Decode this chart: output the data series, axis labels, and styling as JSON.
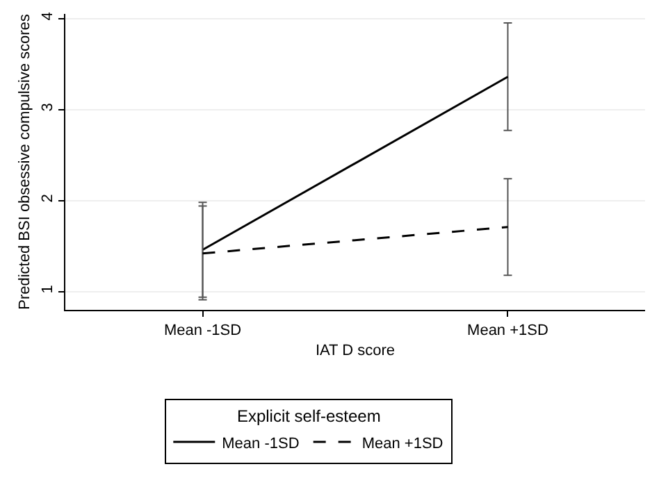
{
  "chart_data": {
    "type": "line",
    "xlabel": "IAT D score",
    "ylabel": "Predicted BSI obsessive compulsive scores",
    "legend_title": "Explicit self-esteem",
    "categories": [
      "Mean -1SD",
      "Mean +1SD"
    ],
    "ylim": [
      0.8,
      4.05
    ],
    "yticks": [
      1,
      2,
      3,
      4
    ],
    "grid": "y",
    "legend": "bottom",
    "marker": "none",
    "series": [
      {
        "name": "Mean -1SD",
        "color": "#000000",
        "line_style": "solid",
        "values": [
          1.46,
          3.36
        ],
        "errors": [
          [
            0.94,
            1.98
          ],
          [
            2.77,
            3.95
          ]
        ]
      },
      {
        "name": "Mean +1SD",
        "color": "#000000",
        "line_style": "dashed",
        "values": [
          1.42,
          1.71
        ],
        "errors": [
          [
            0.91,
            1.94
          ],
          [
            1.18,
            2.24
          ]
        ]
      }
    ]
  }
}
